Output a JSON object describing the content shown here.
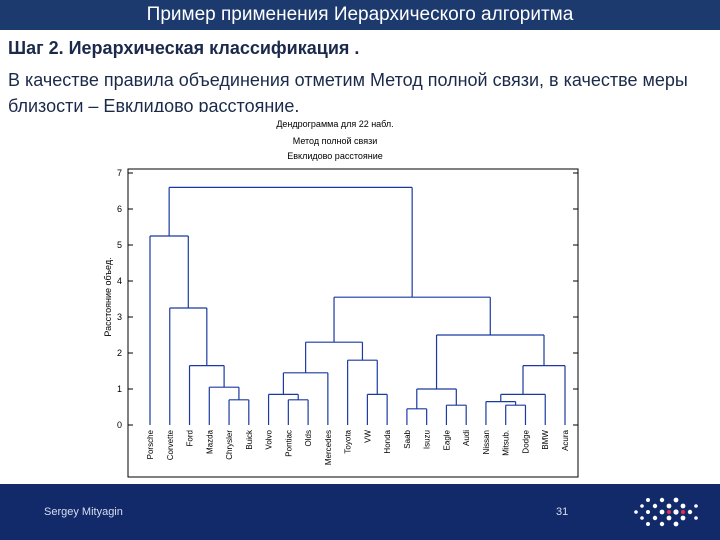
{
  "slide": {
    "title": "Пример применения Иерархического алгоритма",
    "step": "Шаг 2. Иерархическая классификация .",
    "description": "В качестве правила объединения отметим Метод полной связи, в качестве меры близости – Евклидово расстояние.",
    "footer_author": "Sergey Mityagin",
    "page_number": "31"
  },
  "chart_data": {
    "type": "dendrogram",
    "title": "Дендрограмма для 22 набл.",
    "subtitle_1": "Метод полной связи",
    "subtitle_2": "Евклидово расстояние",
    "ylabel": "Расстояние объед.",
    "xlabel": "",
    "ylim": [
      0,
      7
    ],
    "yticks": [
      0,
      1,
      2,
      3,
      4,
      5,
      6,
      7
    ],
    "grid": false,
    "leaves": [
      "Porsche",
      "Corvette",
      "Ford",
      "Mazda",
      "Chrysler",
      "Buick",
      "Volvo",
      "Pontiac",
      "Olds",
      "Mercedes",
      "Toyota",
      "VW",
      "Honda",
      "Saab",
      "Isuzu",
      "Eagle",
      "Audi",
      "Nissan",
      "Mitsub.",
      "Dodge",
      "BMW",
      "Acura"
    ],
    "merges": [
      {
        "left": "Mitsub.",
        "right": "Dodge",
        "height": 0.55,
        "id": "m1"
      },
      {
        "left": "Saab",
        "right": "Isuzu",
        "height": 0.45,
        "id": "m2"
      },
      {
        "left": "Eagle",
        "right": "Audi",
        "height": 0.55,
        "id": "m3"
      },
      {
        "left": "Pontiac",
        "right": "Olds",
        "height": 0.7,
        "id": "m4"
      },
      {
        "left": "Chrysler",
        "right": "Buick",
        "height": 0.7,
        "id": "m5"
      },
      {
        "left": "Volvo",
        "right": "m4",
        "height": 0.85,
        "id": "m6"
      },
      {
        "left": "VW",
        "right": "Honda",
        "height": 0.85,
        "id": "m7"
      },
      {
        "left": "Nissan",
        "right": "m1",
        "height": 0.65,
        "id": "m8"
      },
      {
        "left": "m2",
        "right": "m3",
        "height": 1.0,
        "id": "m9"
      },
      {
        "left": "Mazda",
        "right": "m5",
        "height": 1.05,
        "id": "m10"
      },
      {
        "left": "m6",
        "right": "Mercedes",
        "height": 1.45,
        "id": "m11"
      },
      {
        "left": "m8",
        "right": "BMW",
        "height": 0.85,
        "id": "m12"
      },
      {
        "left": "m12",
        "right": "Acura",
        "height": 1.65,
        "id": "m13"
      },
      {
        "left": "Ford",
        "right": "m10",
        "height": 1.65,
        "id": "m14"
      },
      {
        "left": "Toyota",
        "right": "m7",
        "height": 1.8,
        "id": "m15"
      },
      {
        "left": "m11",
        "right": "m15",
        "height": 2.3,
        "id": "m16"
      },
      {
        "left": "m9",
        "right": "m13",
        "height": 2.5,
        "id": "m17"
      },
      {
        "left": "Corvette",
        "right": "m14",
        "height": 3.25,
        "id": "m18"
      },
      {
        "left": "m16",
        "right": "m17",
        "height": 3.55,
        "id": "m19"
      },
      {
        "left": "Porsche",
        "right": "m18",
        "height": 5.25,
        "id": "m20"
      },
      {
        "left": "m20",
        "right": "m19",
        "height": 6.6,
        "id": "m21"
      }
    ],
    "highlight_color": "#1a3aa0",
    "line_color": "#1a3aa0"
  }
}
